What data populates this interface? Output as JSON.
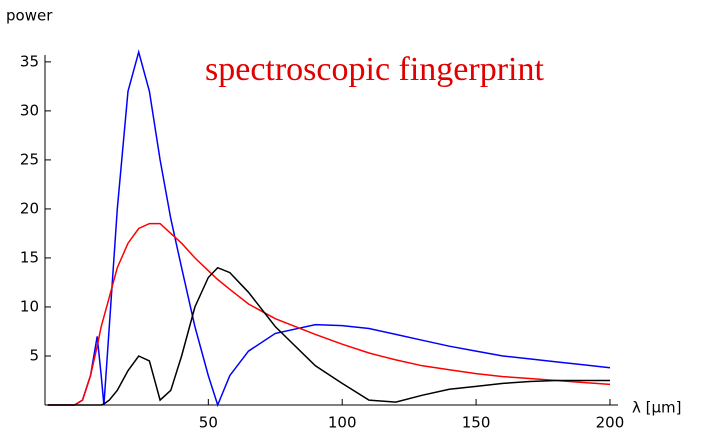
{
  "chart_data": {
    "type": "line",
    "annotation": "spectroscopic fingerprint",
    "ylabel": "power",
    "xlabel": "λ [μm]",
    "x": [
      -10,
      0,
      3,
      6,
      8.5,
      10,
      11,
      13,
      16,
      20,
      24,
      28,
      32,
      36,
      40,
      45,
      50,
      53.5,
      58,
      65,
      75,
      90,
      100,
      110,
      120,
      130,
      140,
      150,
      160,
      170,
      180,
      190,
      200
    ],
    "series": [
      {
        "color": "#0000ff",
        "values": [
          0,
          0,
          0.5,
          3,
          7,
          3,
          0,
          8,
          20,
          32,
          36,
          32,
          25,
          19,
          14,
          8,
          3,
          0,
          3,
          5.5,
          7.3,
          8.2,
          8.1,
          7.8,
          7.2,
          6.6,
          6,
          5.5,
          5,
          4.7,
          4.4,
          4.1,
          3.8
        ]
      },
      {
        "color": "#ff0000",
        "values": [
          0,
          0,
          0.5,
          3,
          6,
          8,
          9,
          11,
          14,
          16.5,
          18,
          18.5,
          18.5,
          17.5,
          16.5,
          15,
          13.7,
          12.8,
          11.8,
          10.3,
          8.8,
          7.2,
          6.2,
          5.3,
          4.6,
          4,
          3.6,
          3.2,
          2.9,
          2.7,
          2.5,
          2.3,
          2.1
        ]
      },
      {
        "color": "#000000",
        "values": [
          0,
          0,
          0,
          0,
          0,
          0,
          0.1,
          0.5,
          1.5,
          3.5,
          5,
          4.5,
          0.5,
          1.5,
          5,
          10,
          13,
          14,
          13.5,
          11.5,
          8,
          4,
          2.2,
          0.5,
          0.3,
          1,
          1.6,
          1.9,
          2.2,
          2.4,
          2.5,
          2.5,
          2.5
        ]
      }
    ],
    "xlim": [
      -11,
      203
    ],
    "ylim": [
      0,
      35.7
    ],
    "xticks": [
      50,
      100,
      150,
      200
    ],
    "yticks": [
      5,
      10,
      15,
      20,
      25,
      30,
      35
    ],
    "grid": false
  }
}
